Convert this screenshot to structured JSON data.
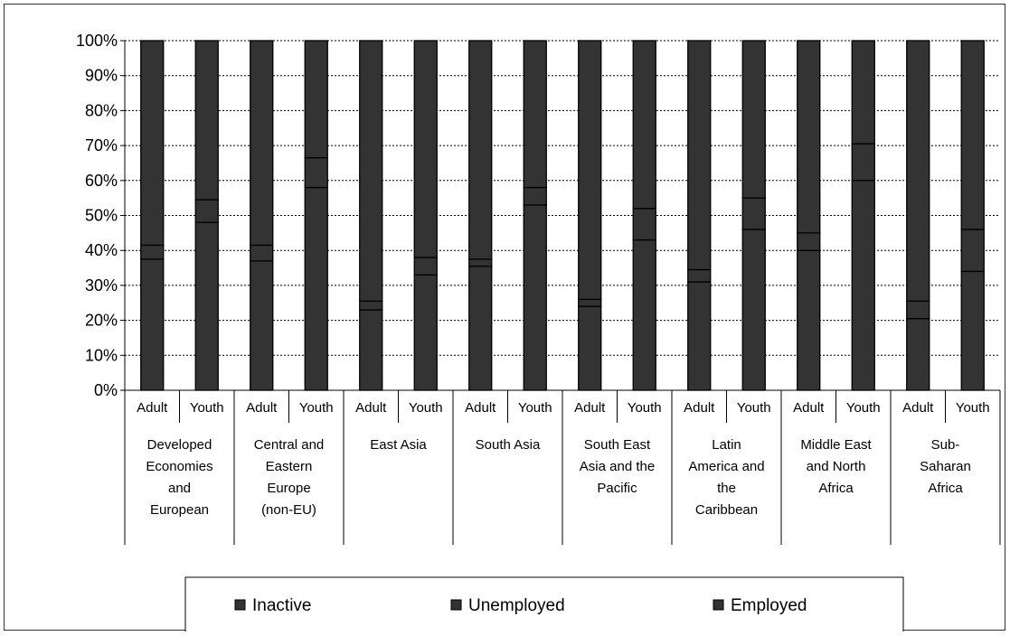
{
  "chart_data": {
    "type": "bar",
    "stacked": true,
    "normalized_percent": true,
    "title": "",
    "xlabel": "",
    "ylabel": "",
    "ylim": [
      0,
      100
    ],
    "y_ticks": [
      "0%",
      "10%",
      "20%",
      "30%",
      "40%",
      "50%",
      "60%",
      "70%",
      "80%",
      "90%",
      "100%"
    ],
    "grid": true,
    "grid_style": "dotted horizontal",
    "legend_position": "bottom",
    "bar_color": "#333333",
    "groups": [
      {
        "label_lines": [
          "Developed",
          "Economies",
          "and",
          "European"
        ]
      },
      {
        "label_lines": [
          "Central and",
          "Eastern",
          "Europe",
          "(non-EU)"
        ]
      },
      {
        "label_lines": [
          "East Asia"
        ]
      },
      {
        "label_lines": [
          "South Asia"
        ]
      },
      {
        "label_lines": [
          "South East",
          "Asia and the",
          "Pacific"
        ]
      },
      {
        "label_lines": [
          "Latin",
          "America and",
          "the",
          "Caribbean"
        ]
      },
      {
        "label_lines": [
          "Middle East",
          "and North",
          "Africa"
        ]
      },
      {
        "label_lines": [
          "Sub-",
          "Saharan",
          "Africa"
        ]
      }
    ],
    "subcategories": [
      "Adult",
      "Youth"
    ],
    "series": [
      {
        "name": "Inactive",
        "values": [
          58.5,
          45.5,
          58.5,
          33.5,
          74.5,
          62,
          62.5,
          42,
          74,
          48,
          65.5,
          45,
          55,
          29.5,
          74.5,
          54
        ]
      },
      {
        "name": "Unemployed",
        "values": [
          4,
          6.5,
          4.5,
          8.5,
          2.5,
          5,
          2,
          5,
          2,
          9,
          3.5,
          9,
          5,
          10.5,
          5,
          12
        ]
      },
      {
        "name": "Employed",
        "values": [
          37.5,
          48,
          37,
          58,
          23,
          33,
          35.5,
          53,
          24,
          43,
          31,
          46,
          40,
          60,
          20.5,
          34
        ]
      }
    ]
  }
}
